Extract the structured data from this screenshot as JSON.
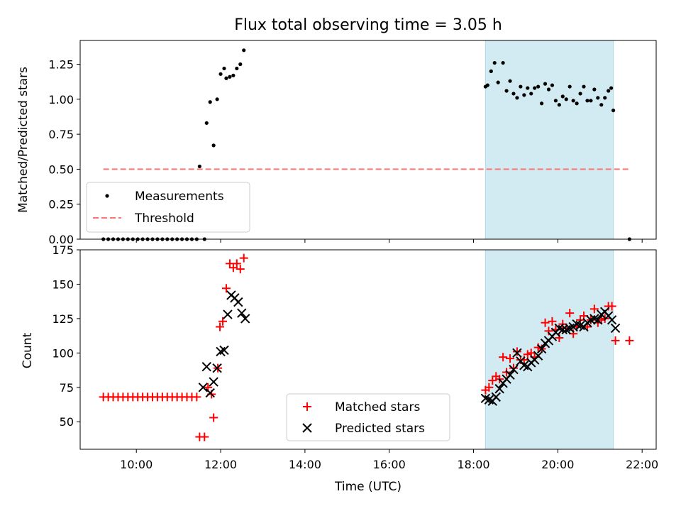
{
  "chart_data": [
    {
      "type": "scatter",
      "title": "Flux total observing time = 3.05 h",
      "xlabel": "",
      "ylabel": "Matched/Predicted stars",
      "x_type": "time",
      "xlim": [
        "08:40",
        "22:20"
      ],
      "ylim": [
        0,
        1.42
      ],
      "yticks": [
        0.0,
        0.25,
        0.5,
        0.75,
        1.0,
        1.25
      ],
      "ytick_labels": [
        "0.00",
        "0.25",
        "0.50",
        "0.75",
        "1.00",
        "1.25"
      ],
      "shaded_interval": {
        "start": "18:17",
        "end": "21:19",
        "color": "#add8e6"
      },
      "legend_location": "lower-left",
      "series": [
        {
          "name": "Measurements",
          "marker": "dot",
          "color": "#000000",
          "points": [
            [
              "09:13",
              0.0
            ],
            [
              "09:20",
              0.0
            ],
            [
              "09:27",
              0.0
            ],
            [
              "09:34",
              0.0
            ],
            [
              "09:41",
              0.0
            ],
            [
              "09:48",
              0.0
            ],
            [
              "09:55",
              0.0
            ],
            [
              "10:02",
              0.0
            ],
            [
              "10:09",
              0.0
            ],
            [
              "10:16",
              0.0
            ],
            [
              "10:23",
              0.0
            ],
            [
              "10:30",
              0.0
            ],
            [
              "10:37",
              0.0
            ],
            [
              "10:44",
              0.0
            ],
            [
              "10:51",
              0.0
            ],
            [
              "10:58",
              0.0
            ],
            [
              "11:05",
              0.0
            ],
            [
              "11:12",
              0.0
            ],
            [
              "11:19",
              0.0
            ],
            [
              "11:26",
              0.0
            ],
            [
              "11:37",
              0.0
            ],
            [
              "11:30",
              0.52
            ],
            [
              "11:40",
              0.83
            ],
            [
              "11:45",
              0.98
            ],
            [
              "11:50",
              0.67
            ],
            [
              "11:55",
              1.0
            ],
            [
              "12:00",
              1.18
            ],
            [
              "12:05",
              1.22
            ],
            [
              "12:08",
              1.15
            ],
            [
              "12:13",
              1.16
            ],
            [
              "12:18",
              1.17
            ],
            [
              "12:23",
              1.22
            ],
            [
              "12:28",
              1.25
            ],
            [
              "12:33",
              1.35
            ],
            [
              "18:17",
              1.09
            ],
            [
              "18:20",
              1.1
            ],
            [
              "18:25",
              1.2
            ],
            [
              "18:30",
              1.26
            ],
            [
              "18:35",
              1.12
            ],
            [
              "18:42",
              1.26
            ],
            [
              "18:47",
              1.06
            ],
            [
              "18:52",
              1.13
            ],
            [
              "18:57",
              1.04
            ],
            [
              "19:02",
              1.01
            ],
            [
              "19:07",
              1.09
            ],
            [
              "19:12",
              1.03
            ],
            [
              "19:17",
              1.08
            ],
            [
              "19:22",
              1.04
            ],
            [
              "19:27",
              1.08
            ],
            [
              "19:32",
              1.09
            ],
            [
              "19:37",
              0.97
            ],
            [
              "19:42",
              1.11
            ],
            [
              "19:47",
              1.07
            ],
            [
              "19:52",
              1.1
            ],
            [
              "19:57",
              0.99
            ],
            [
              "20:02",
              0.96
            ],
            [
              "20:07",
              1.02
            ],
            [
              "20:12",
              1.0
            ],
            [
              "20:17",
              1.09
            ],
            [
              "20:22",
              0.99
            ],
            [
              "20:27",
              0.97
            ],
            [
              "20:32",
              1.04
            ],
            [
              "20:37",
              1.09
            ],
            [
              "20:42",
              0.99
            ],
            [
              "20:47",
              0.99
            ],
            [
              "20:52",
              1.07
            ],
            [
              "20:57",
              1.01
            ],
            [
              "21:02",
              0.96
            ],
            [
              "21:07",
              1.01
            ],
            [
              "21:12",
              1.06
            ],
            [
              "21:16",
              1.08
            ],
            [
              "21:19",
              0.92
            ],
            [
              "21:42",
              0.0
            ]
          ]
        },
        {
          "name": "Threshold",
          "marker": "dashed-line",
          "color": "#ff7373",
          "points": [
            [
              "09:13",
              0.5
            ],
            [
              "21:42",
              0.5
            ]
          ]
        }
      ]
    },
    {
      "type": "scatter",
      "title": "",
      "xlabel": "Time (UTC)",
      "ylabel": "Count",
      "x_type": "time",
      "xlim": [
        "08:40",
        "22:20"
      ],
      "ylim": [
        30,
        175
      ],
      "xticks": [
        "10:00",
        "12:00",
        "14:00",
        "16:00",
        "18:00",
        "20:00",
        "22:00"
      ],
      "yticks": [
        50,
        75,
        100,
        125,
        150,
        175
      ],
      "ytick_labels": [
        "50",
        "75",
        "100",
        "125",
        "150",
        "175"
      ],
      "shaded_interval": {
        "start": "18:17",
        "end": "21:19",
        "color": "#add8e6"
      },
      "legend_location": "lower-center",
      "series": [
        {
          "name": "Matched stars",
          "marker": "plus",
          "color": "#ff0000",
          "points": [
            [
              "09:13",
              68
            ],
            [
              "09:20",
              68
            ],
            [
              "09:27",
              68
            ],
            [
              "09:34",
              68
            ],
            [
              "09:41",
              68
            ],
            [
              "09:48",
              68
            ],
            [
              "09:55",
              68
            ],
            [
              "10:02",
              68
            ],
            [
              "10:09",
              68
            ],
            [
              "10:16",
              68
            ],
            [
              "10:23",
              68
            ],
            [
              "10:30",
              68
            ],
            [
              "10:37",
              68
            ],
            [
              "10:44",
              68
            ],
            [
              "10:51",
              68
            ],
            [
              "10:58",
              68
            ],
            [
              "11:05",
              68
            ],
            [
              "11:12",
              68
            ],
            [
              "11:19",
              68
            ],
            [
              "11:26",
              68
            ],
            [
              "11:30",
              39
            ],
            [
              "11:37",
              39
            ],
            [
              "11:42",
              75
            ],
            [
              "11:47",
              70
            ],
            [
              "11:50",
              53
            ],
            [
              "11:56",
              89
            ],
            [
              "11:59",
              119
            ],
            [
              "12:03",
              123
            ],
            [
              "12:08",
              147
            ],
            [
              "12:13",
              165
            ],
            [
              "12:18",
              162
            ],
            [
              "12:23",
              165
            ],
            [
              "12:28",
              161
            ],
            [
              "12:33",
              169
            ],
            [
              "18:17",
              73
            ],
            [
              "18:22",
              75
            ],
            [
              "18:27",
              80
            ],
            [
              "18:32",
              83
            ],
            [
              "18:37",
              81
            ],
            [
              "18:42",
              97
            ],
            [
              "18:47",
              86
            ],
            [
              "18:52",
              96
            ],
            [
              "18:57",
              89
            ],
            [
              "19:02",
              101
            ],
            [
              "19:07",
              95
            ],
            [
              "19:12",
              95
            ],
            [
              "19:17",
              99
            ],
            [
              "19:22",
              100
            ],
            [
              "19:27",
              97
            ],
            [
              "19:32",
              104
            ],
            [
              "19:37",
              103
            ],
            [
              "19:42",
              122
            ],
            [
              "19:47",
              116
            ],
            [
              "19:52",
              123
            ],
            [
              "19:57",
              117
            ],
            [
              "20:02",
              111
            ],
            [
              "20:07",
              121
            ],
            [
              "20:12",
              118
            ],
            [
              "20:17",
              129
            ],
            [
              "20:22",
              114
            ],
            [
              "20:27",
              119
            ],
            [
              "20:32",
              124
            ],
            [
              "20:37",
              127
            ],
            [
              "20:42",
              119
            ],
            [
              "20:47",
              124
            ],
            [
              "20:52",
              132
            ],
            [
              "20:57",
              122
            ],
            [
              "21:02",
              124
            ],
            [
              "21:07",
              125
            ],
            [
              "21:12",
              134
            ],
            [
              "21:17",
              134
            ],
            [
              "21:22",
              109
            ],
            [
              "21:42",
              109
            ]
          ]
        },
        {
          "name": "Predicted stars",
          "marker": "x",
          "color": "#000000",
          "points": [
            [
              "11:35",
              75
            ],
            [
              "11:40",
              90
            ],
            [
              "11:45",
              71
            ],
            [
              "11:50",
              79
            ],
            [
              "11:55",
              89
            ],
            [
              "12:00",
              101
            ],
            [
              "12:05",
              102
            ],
            [
              "12:10",
              128
            ],
            [
              "12:15",
              142
            ],
            [
              "12:20",
              140
            ],
            [
              "12:25",
              137
            ],
            [
              "12:30",
              129
            ],
            [
              "12:35",
              125
            ],
            [
              "18:17",
              67
            ],
            [
              "18:22",
              66
            ],
            [
              "18:27",
              65
            ],
            [
              "18:32",
              68
            ],
            [
              "18:37",
              74
            ],
            [
              "18:42",
              78
            ],
            [
              "18:47",
              81
            ],
            [
              "18:52",
              84
            ],
            [
              "18:57",
              88
            ],
            [
              "19:02",
              100
            ],
            [
              "19:07",
              94
            ],
            [
              "19:12",
              91
            ],
            [
              "19:17",
              90
            ],
            [
              "19:22",
              93
            ],
            [
              "19:27",
              95
            ],
            [
              "19:32",
              98
            ],
            [
              "19:37",
              103
            ],
            [
              "19:42",
              107
            ],
            [
              "19:47",
              109
            ],
            [
              "19:52",
              112
            ],
            [
              "19:57",
              115
            ],
            [
              "20:02",
              118
            ],
            [
              "20:07",
              117
            ],
            [
              "20:12",
              117
            ],
            [
              "20:17",
              118
            ],
            [
              "20:22",
              119
            ],
            [
              "20:27",
              121
            ],
            [
              "20:32",
              120
            ],
            [
              "20:37",
              119
            ],
            [
              "20:42",
              122
            ],
            [
              "20:47",
              124
            ],
            [
              "20:52",
              125
            ],
            [
              "20:57",
              124
            ],
            [
              "21:02",
              128
            ],
            [
              "21:07",
              130
            ],
            [
              "21:12",
              127
            ],
            [
              "21:17",
              124
            ],
            [
              "21:22",
              118
            ]
          ]
        }
      ]
    }
  ]
}
